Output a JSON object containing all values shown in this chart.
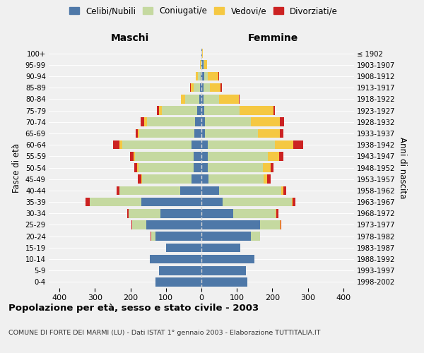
{
  "age_groups": [
    "0-4",
    "5-9",
    "10-14",
    "15-19",
    "20-24",
    "25-29",
    "30-34",
    "35-39",
    "40-44",
    "45-49",
    "50-54",
    "55-59",
    "60-64",
    "65-69",
    "70-74",
    "75-79",
    "80-84",
    "85-89",
    "90-94",
    "95-99",
    "100+"
  ],
  "birth_years": [
    "1998-2002",
    "1993-1997",
    "1988-1992",
    "1983-1987",
    "1978-1982",
    "1973-1977",
    "1968-1972",
    "1963-1967",
    "1958-1962",
    "1953-1957",
    "1948-1952",
    "1943-1947",
    "1938-1942",
    "1933-1937",
    "1928-1932",
    "1923-1927",
    "1918-1922",
    "1913-1917",
    "1908-1912",
    "1903-1907",
    "≤ 1902"
  ],
  "colors": {
    "celibi": "#4e78a8",
    "coniugati": "#c5d9a0",
    "vedovi": "#f5c842",
    "divorziati": "#cc2222"
  },
  "males": {
    "celibi": [
      130,
      120,
      145,
      100,
      130,
      155,
      115,
      170,
      60,
      28,
      22,
      22,
      28,
      20,
      18,
      12,
      5,
      3,
      2,
      0,
      0
    ],
    "coniugati": [
      0,
      0,
      0,
      0,
      12,
      40,
      90,
      145,
      170,
      140,
      155,
      165,
      195,
      155,
      135,
      100,
      40,
      18,
      8,
      2,
      0
    ],
    "vedovi": [
      0,
      0,
      0,
      0,
      0,
      0,
      0,
      0,
      0,
      2,
      5,
      5,
      8,
      5,
      8,
      8,
      12,
      8,
      5,
      2,
      0
    ],
    "divorziati": [
      0,
      0,
      0,
      0,
      2,
      2,
      5,
      12,
      8,
      10,
      8,
      10,
      18,
      5,
      10,
      5,
      0,
      2,
      0,
      0,
      0
    ]
  },
  "females": {
    "celibi": [
      130,
      125,
      150,
      110,
      140,
      165,
      90,
      60,
      50,
      20,
      18,
      18,
      18,
      10,
      10,
      8,
      5,
      5,
      8,
      5,
      2
    ],
    "coniugati": [
      0,
      0,
      0,
      0,
      25,
      55,
      120,
      195,
      175,
      155,
      155,
      170,
      190,
      150,
      130,
      100,
      45,
      18,
      10,
      2,
      0
    ],
    "vedovi": [
      0,
      0,
      0,
      0,
      0,
      2,
      2,
      2,
      5,
      10,
      22,
      30,
      50,
      60,
      80,
      95,
      55,
      30,
      30,
      8,
      2
    ],
    "divorziati": [
      0,
      0,
      0,
      0,
      0,
      2,
      5,
      8,
      8,
      10,
      8,
      12,
      28,
      10,
      12,
      5,
      2,
      5,
      2,
      0,
      0
    ]
  },
  "title": "Popolazione per età, sesso e stato civile - 2003",
  "subtitle": "COMUNE DI FORTE DEI MARMI (LU) - Dati ISTAT 1° gennaio 2003 - Elaborazione TUTTITALIA.IT",
  "xlabel_left": "Maschi",
  "xlabel_right": "Femmine",
  "ylabel_left": "Fasce di età",
  "ylabel_right": "Anni di nascita",
  "legend_labels": [
    "Celibi/Nubili",
    "Coniugati/e",
    "Vedovi/e",
    "Divorziati/e"
  ],
  "xlim": 430,
  "background_color": "#f0f0f0"
}
